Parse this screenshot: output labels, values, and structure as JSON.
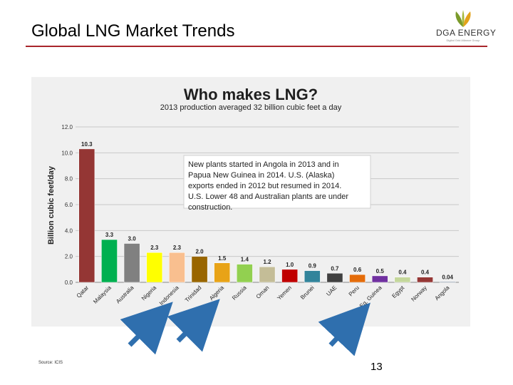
{
  "slide": {
    "title": "Global LNG Market Trends",
    "source": "Source: ICIS",
    "page_number": "13",
    "logo_text": "DGA ENERGY",
    "logo_tagline": "Digital Grid Alliance Group"
  },
  "colors": {
    "title_rule": "#a8262b",
    "callout_text": "#ffffff",
    "callout_bg": "#ffffff",
    "arrow": "#2f6fae"
  },
  "chart_data": {
    "type": "bar",
    "title": "Who makes LNG?",
    "subtitle": "2013 production averaged 32 billion cubic feet a day",
    "ylabel": "Billion cubic feet/day",
    "xlabel": "",
    "ylim": [
      0,
      12
    ],
    "yticks": [
      "0.0",
      "2.0",
      "4.0",
      "6.0",
      "8.0",
      "10.0",
      "12.0"
    ],
    "grid": true,
    "categories": [
      "Qatar",
      "Malaysia",
      "Australia",
      "Nigeria",
      "Indonesia",
      "Trinidad",
      "Algeria",
      "Russia",
      "Oman",
      "Yemen",
      "Brunei",
      "UAE",
      "Peru",
      "Eq. Guinea",
      "Egypt",
      "Norway",
      "Angola"
    ],
    "values": [
      10.3,
      3.3,
      3.0,
      2.3,
      2.3,
      2.0,
      1.5,
      1.4,
      1.2,
      1.0,
      0.9,
      0.7,
      0.6,
      0.5,
      0.4,
      0.4,
      0.04
    ],
    "value_labels": [
      "10.3",
      "3.3",
      "3.0",
      "2.3",
      "2.3",
      "2.0",
      "1.5",
      "1.4",
      "1.2",
      "1.0",
      "0.9",
      "0.7",
      "0.6",
      "0.5",
      "0.4",
      "0.4",
      "0.04"
    ],
    "bar_colors": [
      "#943634",
      "#00b050",
      "#808080",
      "#ffff00",
      "#f9bf8f",
      "#996600",
      "#e8a317",
      "#92d050",
      "#c4bd97",
      "#c00000",
      "#31849b",
      "#404040",
      "#e46c0a",
      "#7030a0",
      "#c4d79b",
      "#953735",
      "#17375e"
    ],
    "annotation": "New plants started in Angola in 2013 and in Papua New Guinea in 2014. U.S. (Alaska) exports ended in 2012 but resumed in 2014. U.S. Lower 48 and Australian plants are under construction."
  }
}
